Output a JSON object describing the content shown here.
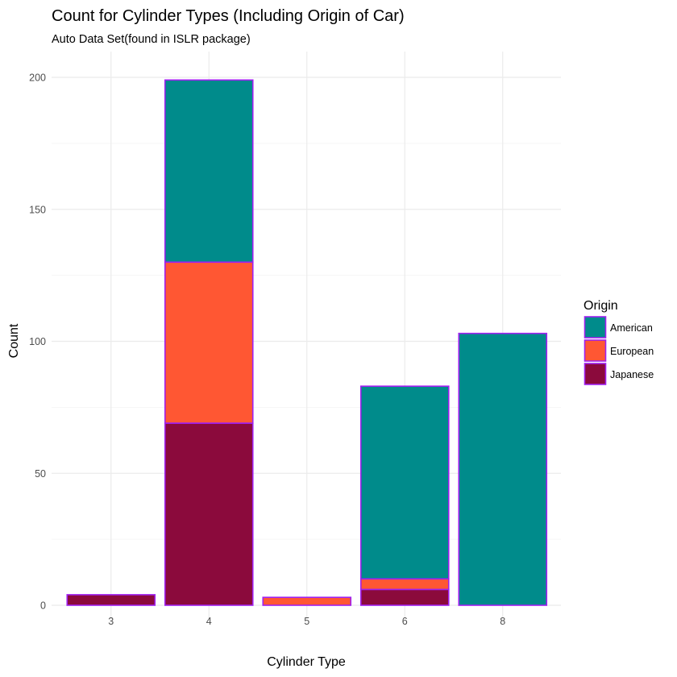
{
  "chart_data": {
    "type": "bar",
    "stacked": true,
    "title": "Count for Cylinder Types (Including Origin of Car)",
    "subtitle": "Auto Data Set(found in ISLR package)",
    "xlabel": "Cylinder Type",
    "ylabel": "Count",
    "categories": [
      "3",
      "4",
      "5",
      "6",
      "8"
    ],
    "yticks": [
      0,
      50,
      100,
      150,
      200
    ],
    "ylim": [
      0,
      210
    ],
    "grid": true,
    "legend": {
      "title": "Origin",
      "position": "right"
    },
    "bar_outline_color": "#a020f0",
    "series": [
      {
        "name": "Japanese",
        "color": "#8b0a3c",
        "values": [
          4,
          69,
          0,
          6,
          0
        ]
      },
      {
        "name": "European",
        "color": "#ff5733",
        "values": [
          0,
          61,
          3,
          4,
          0
        ]
      },
      {
        "name": "American",
        "color": "#008b8b",
        "values": [
          0,
          69,
          0,
          73,
          103
        ]
      }
    ],
    "legend_order": [
      "American",
      "European",
      "Japanese"
    ]
  }
}
